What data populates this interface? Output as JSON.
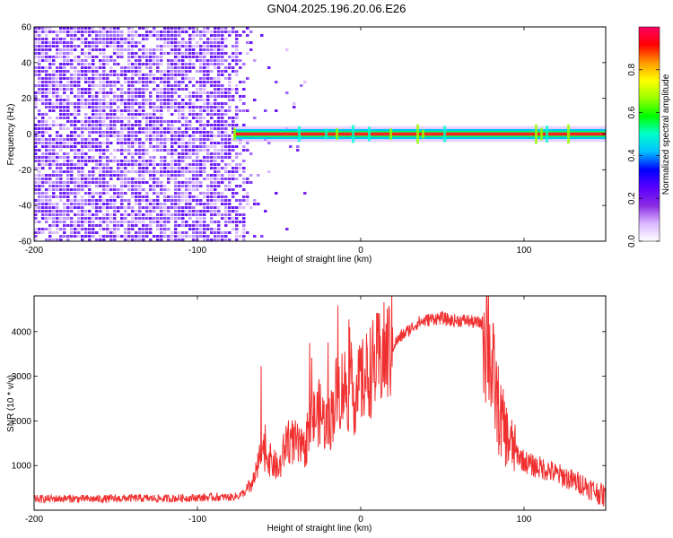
{
  "title": "GN04.2025.196.20.06.E26",
  "chart_data": [
    {
      "type": "heatmap",
      "xlabel": "Height of straight line (km)",
      "ylabel": "Frequency (Hz)",
      "xlim": [
        -200,
        150
      ],
      "ylim": [
        -60,
        60
      ],
      "xticks": [
        -200,
        -100,
        0,
        100
      ],
      "yticks": [
        -60,
        -40,
        -20,
        0,
        20,
        40,
        60
      ],
      "colorbar": {
        "label": "Normalized spectral amplitude",
        "range": [
          0,
          1
        ],
        "ticks": [
          0.0,
          0.2,
          0.4,
          0.6,
          0.8
        ],
        "colormap": [
          "#ffffff",
          "#d9b8ff",
          "#8a2be2",
          "#5a00ff",
          "#0000ff",
          "#00bfff",
          "#00ffcc",
          "#00ff00",
          "#9aff00",
          "#ffff00",
          "#ff9900",
          "#ff0000",
          "#ff0066"
        ]
      },
      "regions": [
        {
          "name": "broadband noise",
          "x_range": [
            -200,
            -65
          ],
          "freq_range": [
            -60,
            60
          ],
          "amplitude": 0.12
        },
        {
          "name": "carrier line",
          "x_range": [
            -78,
            150
          ],
          "freq_center": 0,
          "freq_halfwidth": 2,
          "amplitude": 0.95
        }
      ]
    },
    {
      "type": "line",
      "xlabel": "Height of straight line (km)",
      "ylabel": "SNR (10 * v/v)",
      "xlim": [
        -200,
        150
      ],
      "ylim": [
        0,
        4800
      ],
      "xticks": [
        -200,
        -100,
        0,
        100
      ],
      "yticks": [
        1000,
        2000,
        3000,
        4000
      ],
      "line_color": "#f03030",
      "series": [
        {
          "x": [
            -200,
            -180,
            -160,
            -140,
            -120,
            -100,
            -90,
            -80,
            -75,
            -70,
            -65,
            -60,
            -55,
            -50,
            -45,
            -40,
            -35,
            -30,
            -25,
            -20,
            -15,
            -10,
            -5,
            0,
            5,
            10,
            15,
            20,
            25,
            30,
            35,
            40,
            45,
            50,
            55,
            60,
            65,
            70,
            75,
            78,
            80,
            85,
            90,
            95,
            100,
            105,
            110,
            115,
            120,
            125,
            130,
            135,
            140,
            145,
            150
          ],
          "y": [
            250,
            260,
            250,
            270,
            260,
            280,
            290,
            290,
            320,
            420,
            700,
            1400,
            1100,
            900,
            1600,
            1500,
            1300,
            2000,
            2200,
            1800,
            2600,
            2800,
            2500,
            2800,
            3100,
            3300,
            3500,
            3700,
            3900,
            4050,
            4200,
            4250,
            4300,
            4300,
            4250,
            4250,
            4250,
            4200,
            4200,
            4000,
            3200,
            2100,
            1600,
            1300,
            1100,
            1000,
            950,
            900,
            800,
            750,
            650,
            600,
            500,
            400,
            300
          ]
        }
      ]
    }
  ]
}
